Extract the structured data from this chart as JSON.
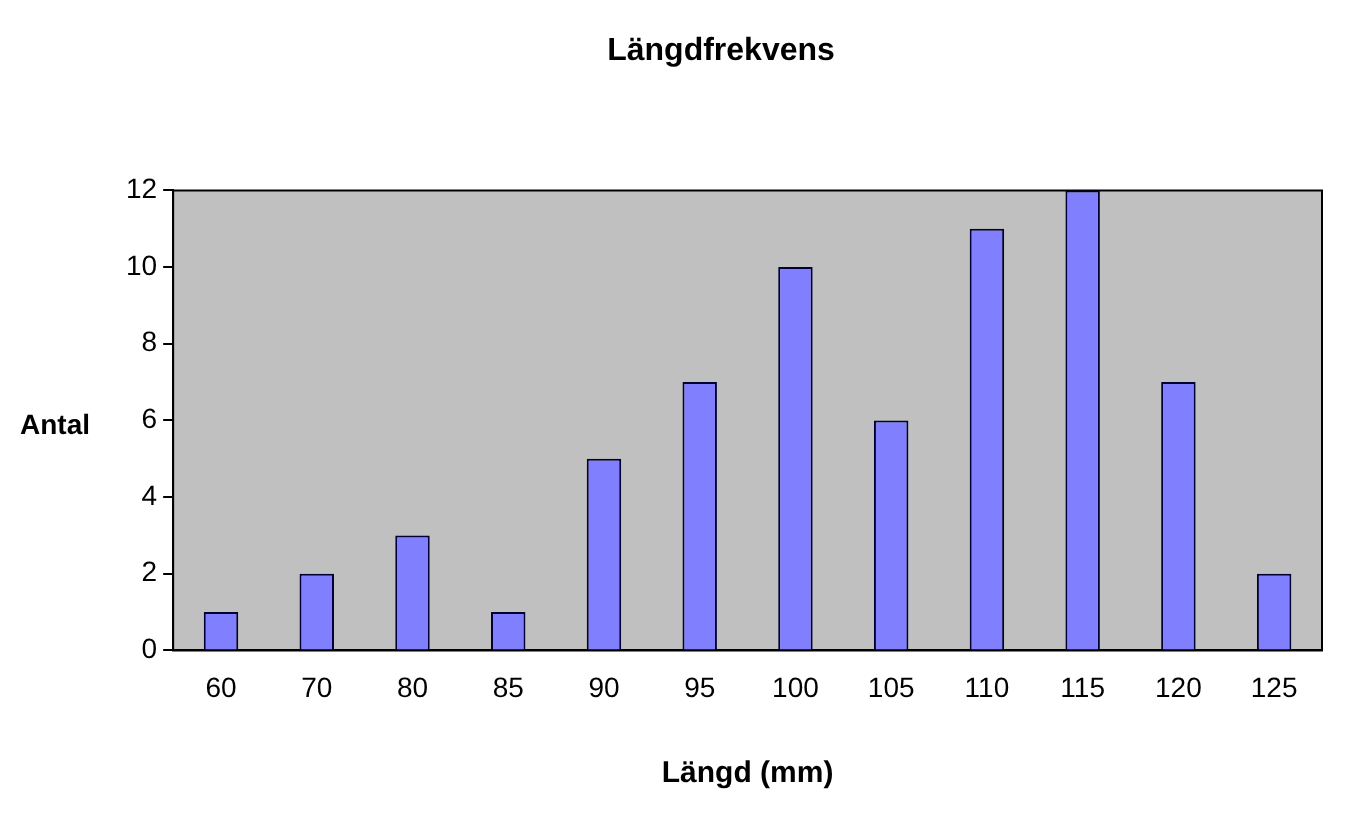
{
  "chart_data": {
    "type": "bar",
    "title": "Längdfrekvens",
    "xlabel": "Längd (mm)",
    "ylabel": "Antal",
    "categories": [
      "60",
      "70",
      "80",
      "85",
      "90",
      "95",
      "100",
      "105",
      "110",
      "115",
      "120",
      "125"
    ],
    "values": [
      1,
      2,
      3,
      1,
      5,
      7,
      10,
      6,
      11,
      12,
      7,
      2
    ],
    "color": "#8080ff",
    "ylim": [
      0,
      12
    ],
    "yticks": [
      0,
      2,
      4,
      6,
      8,
      10,
      12
    ],
    "grid": false,
    "legend": false
  }
}
